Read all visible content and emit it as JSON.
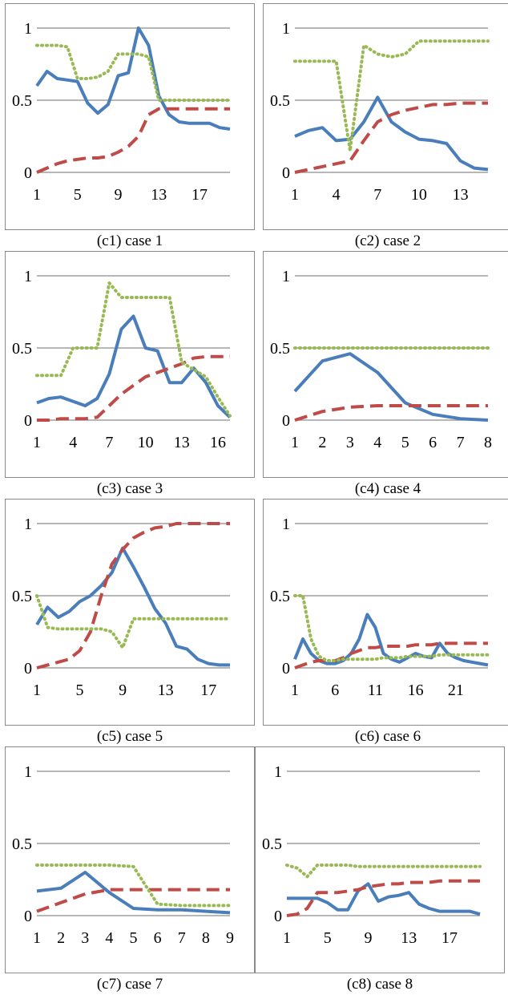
{
  "colors": {
    "s1": "#4a7ebb",
    "s2": "#be4b48",
    "s3": "#98b954",
    "grid": "#8c8c8c"
  },
  "panels": [
    {
      "caption": "(c1) case 1",
      "chart_data": {
        "type": "line",
        "ylim": [
          0,
          1
        ],
        "xlim": [
          1,
          20
        ],
        "y_ticks": [
          "0",
          "0.5",
          "1"
        ],
        "x_ticks": [
          1,
          5,
          9,
          13,
          17
        ],
        "series": [
          {
            "style": "solid",
            "values": [
              0.6,
              0.7,
              0.65,
              0.64,
              0.63,
              0.48,
              0.41,
              0.47,
              0.67,
              0.69,
              1.0,
              0.88,
              0.53,
              0.4,
              0.35,
              0.34,
              0.34,
              0.34,
              0.31,
              0.3
            ]
          },
          {
            "style": "dashed",
            "values": [
              0.0,
              0.03,
              0.06,
              0.08,
              0.09,
              0.1,
              0.1,
              0.11,
              0.14,
              0.18,
              0.25,
              0.4,
              0.44,
              0.44,
              0.44,
              0.44,
              0.44,
              0.44,
              0.44,
              0.44
            ]
          },
          {
            "style": "dotted",
            "values": [
              0.88,
              0.88,
              0.88,
              0.87,
              0.65,
              0.65,
              0.66,
              0.7,
              0.82,
              0.82,
              0.82,
              0.8,
              0.5,
              0.5,
              0.5,
              0.5,
              0.5,
              0.5,
              0.5,
              0.5
            ]
          }
        ]
      }
    },
    {
      "caption": "(c2) case 2",
      "chart_data": {
        "type": "line",
        "ylim": [
          0,
          1
        ],
        "xlim": [
          1,
          15
        ],
        "y_ticks": [
          "0",
          "0.5",
          "1"
        ],
        "x_ticks": [
          1,
          4,
          7,
          10,
          13
        ],
        "series": [
          {
            "style": "solid",
            "values": [
              0.25,
              0.29,
              0.31,
              0.22,
              0.23,
              0.35,
              0.52,
              0.35,
              0.28,
              0.23,
              0.22,
              0.2,
              0.08,
              0.03,
              0.02
            ]
          },
          {
            "style": "dashed",
            "values": [
              0.0,
              0.02,
              0.04,
              0.06,
              0.08,
              0.22,
              0.35,
              0.4,
              0.43,
              0.45,
              0.47,
              0.47,
              0.48,
              0.48,
              0.48
            ]
          },
          {
            "style": "dotted",
            "values": [
              0.77,
              0.77,
              0.77,
              0.77,
              0.15,
              0.88,
              0.82,
              0.8,
              0.82,
              0.91,
              0.91,
              0.91,
              0.91,
              0.91,
              0.91
            ]
          }
        ]
      }
    },
    {
      "caption": "(c3) case 3",
      "chart_data": {
        "type": "line",
        "ylim": [
          0,
          1
        ],
        "xlim": [
          1,
          17
        ],
        "y_ticks": [
          "0",
          "0.5",
          "1"
        ],
        "x_ticks": [
          1,
          4,
          7,
          10,
          13,
          16
        ],
        "series": [
          {
            "style": "solid",
            "values": [
              0.12,
              0.15,
              0.16,
              0.13,
              0.1,
              0.15,
              0.32,
              0.63,
              0.72,
              0.5,
              0.48,
              0.26,
              0.26,
              0.36,
              0.26,
              0.1,
              0.02
            ]
          },
          {
            "style": "dashed",
            "values": [
              0.0,
              0.0,
              0.01,
              0.01,
              0.01,
              0.02,
              0.1,
              0.18,
              0.24,
              0.3,
              0.33,
              0.36,
              0.39,
              0.43,
              0.44,
              0.44,
              0.44
            ]
          },
          {
            "style": "dotted",
            "values": [
              0.31,
              0.31,
              0.31,
              0.5,
              0.5,
              0.5,
              0.95,
              0.85,
              0.85,
              0.85,
              0.85,
              0.85,
              0.4,
              0.35,
              0.3,
              0.16,
              0.03
            ]
          }
        ]
      }
    },
    {
      "caption": "(c4) case 4",
      "chart_data": {
        "type": "line",
        "ylim": [
          0,
          1
        ],
        "xlim": [
          1,
          8
        ],
        "y_ticks": [
          "0",
          "0.5",
          "1"
        ],
        "x_ticks": [
          1,
          2,
          3,
          4,
          5,
          6,
          7,
          8
        ],
        "series": [
          {
            "style": "solid",
            "values": [
              0.2,
              0.41,
              0.46,
              0.33,
              0.12,
              0.04,
              0.01,
              0.0
            ]
          },
          {
            "style": "dashed",
            "values": [
              0.0,
              0.06,
              0.09,
              0.1,
              0.1,
              0.1,
              0.1,
              0.1
            ]
          },
          {
            "style": "dotted",
            "values": [
              0.5,
              0.5,
              0.5,
              0.5,
              0.5,
              0.5,
              0.5,
              0.5
            ]
          }
        ]
      }
    },
    {
      "caption": "(c5) case 5",
      "chart_data": {
        "type": "line",
        "ylim": [
          0,
          1
        ],
        "xlim": [
          1,
          19
        ],
        "y_ticks": [
          "0",
          "0.5",
          "1"
        ],
        "x_ticks": [
          1,
          5,
          9,
          13,
          17
        ],
        "series": [
          {
            "style": "solid",
            "values": [
              0.3,
              0.42,
              0.35,
              0.39,
              0.46,
              0.5,
              0.57,
              0.66,
              0.83,
              0.7,
              0.56,
              0.41,
              0.31,
              0.15,
              0.13,
              0.06,
              0.03,
              0.02,
              0.02
            ]
          },
          {
            "style": "dashed",
            "values": [
              0.0,
              0.02,
              0.04,
              0.06,
              0.12,
              0.25,
              0.5,
              0.72,
              0.82,
              0.9,
              0.94,
              0.97,
              0.98,
              1.0,
              1.0,
              1.0,
              1.0,
              1.0,
              1.0
            ]
          },
          {
            "style": "dotted",
            "values": [
              0.5,
              0.28,
              0.27,
              0.27,
              0.27,
              0.27,
              0.27,
              0.25,
              0.14,
              0.34,
              0.34,
              0.34,
              0.34,
              0.34,
              0.34,
              0.34,
              0.34,
              0.34,
              0.34
            ]
          }
        ]
      }
    },
    {
      "caption": "(c6) case 6",
      "chart_data": {
        "type": "line",
        "ylim": [
          0,
          1
        ],
        "xlim": [
          1,
          25
        ],
        "y_ticks": [
          "0",
          "0.5",
          "1"
        ],
        "x_ticks": [
          1,
          6,
          11,
          16,
          21
        ],
        "series": [
          {
            "style": "solid",
            "values": [
              0.06,
              0.2,
              0.1,
              0.05,
              0.03,
              0.03,
              0.05,
              0.1,
              0.2,
              0.37,
              0.28,
              0.1,
              0.06,
              0.04,
              0.07,
              0.1,
              0.08,
              0.07,
              0.17,
              0.1,
              0.07,
              0.05,
              0.04,
              0.03,
              0.02
            ]
          },
          {
            "style": "dashed",
            "values": [
              0.0,
              0.02,
              0.04,
              0.05,
              0.05,
              0.05,
              0.07,
              0.1,
              0.12,
              0.14,
              0.14,
              0.15,
              0.15,
              0.15,
              0.15,
              0.16,
              0.16,
              0.16,
              0.17,
              0.17,
              0.17,
              0.17,
              0.17,
              0.17,
              0.17
            ]
          },
          {
            "style": "dotted",
            "values": [
              0.5,
              0.5,
              0.2,
              0.08,
              0.05,
              0.05,
              0.06,
              0.06,
              0.06,
              0.06,
              0.06,
              0.07,
              0.07,
              0.07,
              0.08,
              0.08,
              0.08,
              0.08,
              0.09,
              0.09,
              0.09,
              0.09,
              0.09,
              0.09,
              0.09
            ]
          }
        ]
      }
    },
    {
      "caption": "(c7) case 7",
      "chart_data": {
        "type": "line",
        "ylim": [
          0,
          1
        ],
        "xlim": [
          1,
          9
        ],
        "y_ticks": [
          "0",
          "0.5",
          "1"
        ],
        "x_ticks": [
          1,
          2,
          3,
          4,
          5,
          6,
          7,
          8,
          9
        ],
        "series": [
          {
            "style": "solid",
            "values": [
              0.17,
              0.19,
              0.3,
              0.16,
              0.05,
              0.04,
              0.04,
              0.03,
              0.02
            ]
          },
          {
            "style": "dashed",
            "values": [
              0.03,
              0.09,
              0.15,
              0.18,
              0.18,
              0.18,
              0.18,
              0.18,
              0.18
            ]
          },
          {
            "style": "dotted",
            "values": [
              0.35,
              0.35,
              0.35,
              0.35,
              0.34,
              0.08,
              0.07,
              0.07,
              0.07
            ]
          }
        ]
      }
    },
    {
      "caption": "(c8) case 8",
      "chart_data": {
        "type": "line",
        "ylim": [
          0,
          1
        ],
        "xlim": [
          1,
          20
        ],
        "y_ticks": [
          "0",
          "0.5",
          "1"
        ],
        "x_ticks": [
          1,
          5,
          9,
          13,
          17
        ],
        "series": [
          {
            "style": "solid",
            "values": [
              0.12,
              0.12,
              0.12,
              0.12,
              0.09,
              0.04,
              0.04,
              0.17,
              0.22,
              0.1,
              0.13,
              0.14,
              0.16,
              0.08,
              0.05,
              0.03,
              0.03,
              0.03,
              0.03,
              0.01
            ]
          },
          {
            "style": "dashed",
            "values": [
              0.0,
              0.01,
              0.05,
              0.16,
              0.16,
              0.16,
              0.17,
              0.18,
              0.2,
              0.21,
              0.22,
              0.22,
              0.23,
              0.23,
              0.23,
              0.24,
              0.24,
              0.24,
              0.24,
              0.24
            ]
          },
          {
            "style": "dotted",
            "values": [
              0.35,
              0.33,
              0.27,
              0.35,
              0.35,
              0.35,
              0.35,
              0.34,
              0.34,
              0.34,
              0.34,
              0.34,
              0.34,
              0.34,
              0.34,
              0.34,
              0.34,
              0.34,
              0.34,
              0.34
            ]
          }
        ]
      }
    }
  ]
}
